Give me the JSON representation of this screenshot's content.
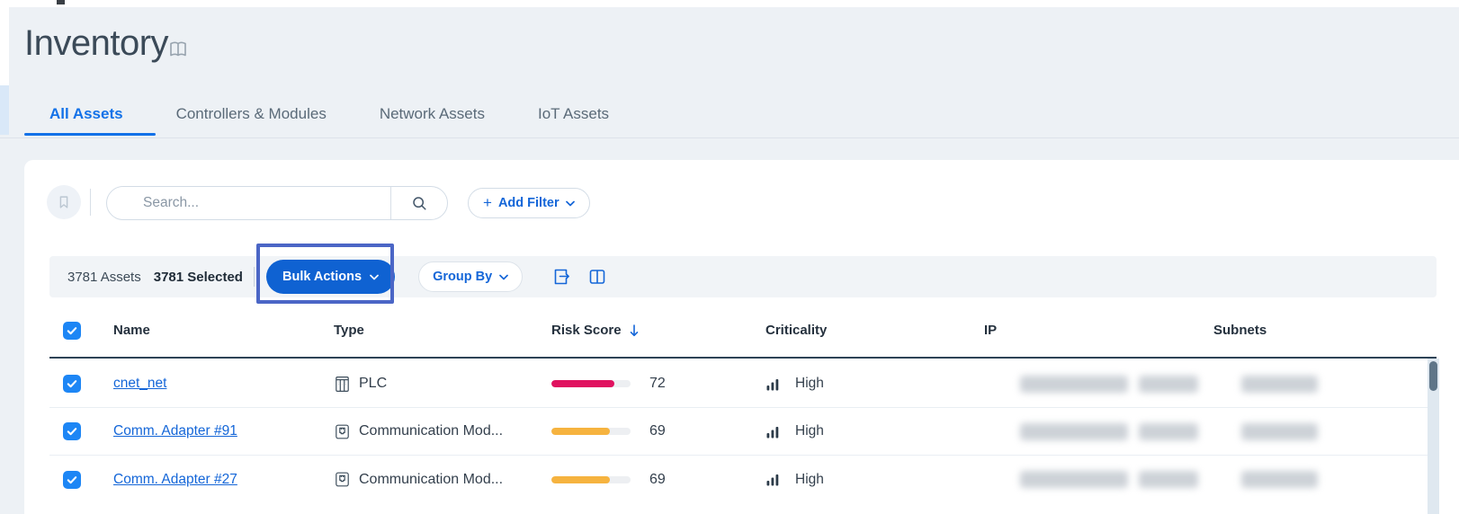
{
  "title": "Inventory",
  "tabs": [
    {
      "label": "All Assets",
      "active": true
    },
    {
      "label": "Controllers & Modules",
      "active": false
    },
    {
      "label": "Network Assets",
      "active": false
    },
    {
      "label": "IoT Assets",
      "active": false
    }
  ],
  "search": {
    "placeholder": "Search..."
  },
  "filter_bar": {
    "plus": "+",
    "add_filter_label": "Add Filter"
  },
  "toolbar": {
    "assets_count": "3781 Assets",
    "selected_count": "3781 Selected",
    "bulk_actions_label": "Bulk Actions",
    "group_by_label": "Group By"
  },
  "table": {
    "columns": [
      "Name",
      "Type",
      "Risk Score",
      "Criticality",
      "IP",
      "Subnets"
    ],
    "sorted_by": "Risk Score",
    "sort_direction": "desc",
    "all_selected": true,
    "rows": [
      {
        "name": "cnet_net",
        "type": "PLC",
        "icon": "plc",
        "risk_score": "72",
        "risk_pct": 80,
        "risk_color": "#e0115f",
        "criticality": "High",
        "ip_redacted": true,
        "subnets_redacted": true,
        "checked": true
      },
      {
        "name": "Comm. Adapter #91",
        "type": "Communication Mod...",
        "icon": "comm-module",
        "risk_score": "69",
        "risk_pct": 74,
        "risk_color": "#f6b33f",
        "criticality": "High",
        "ip_redacted": true,
        "subnets_redacted": true,
        "checked": true
      },
      {
        "name": "Comm. Adapter #27",
        "type": "Communication Mod...",
        "icon": "comm-module",
        "risk_score": "69",
        "risk_pct": 74,
        "risk_color": "#f6b33f",
        "criticality": "High",
        "ip_redacted": true,
        "subnets_redacted": true,
        "checked": true
      }
    ]
  },
  "colors": {
    "accent_blue": "#1466d8",
    "tab_active_blue": "#1271e8",
    "bulk_button_blue": "#0f62d2",
    "annotation_outline": "#4b66c6",
    "risk_red": "#e0115f",
    "risk_orange": "#f6b33f",
    "header_border_dark": "#2d4356"
  }
}
